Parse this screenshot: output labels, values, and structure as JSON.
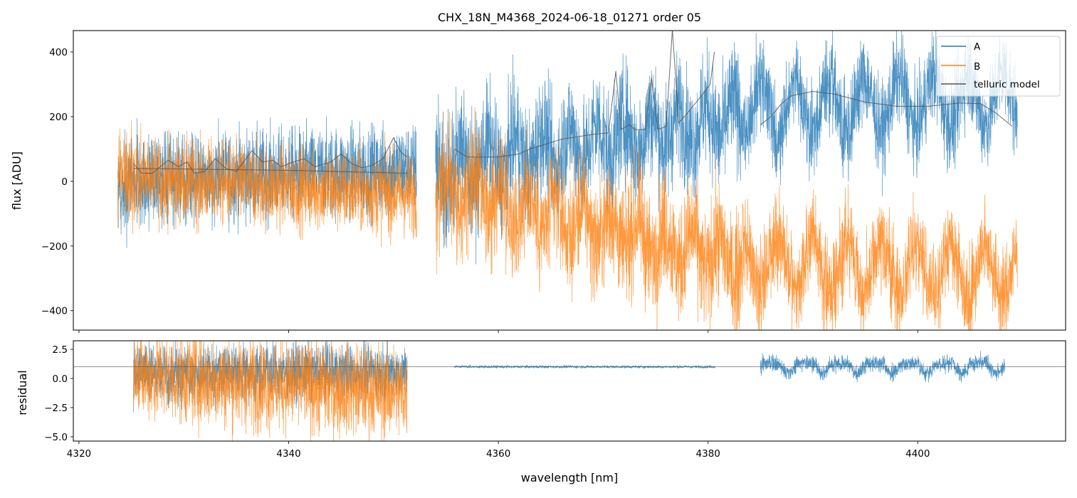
{
  "chart_data": [
    {
      "type": "line",
      "title": "CHX_18N_M4368_2024-06-18_01271  order 05",
      "xlabel": "",
      "ylabel": "flux [ADU]",
      "xlim": [
        4319.46,
        4414.1
      ],
      "ylim": [
        -460,
        466
      ],
      "xticks": [
        4320,
        4340,
        4360,
        4380,
        4400
      ],
      "yticks": [
        400,
        200,
        0,
        -200,
        -400
      ],
      "ytick_labels": [
        "400",
        "200",
        "0",
        "−200",
        "−400"
      ],
      "legend": {
        "placement": "top-right",
        "entries": [
          "A",
          "B",
          "telluric model"
        ]
      },
      "series": [
        {
          "name": "A",
          "color": "#1f77b4",
          "segments": [
            {
              "x": [
                4323.7,
                4352.2
              ],
              "mean": [
                0,
                40
              ],
              "noise": 70,
              "osc_amp": 0,
              "period": 3.3
            },
            {
              "x": [
                4354.0,
                4383.3
              ],
              "mean": [
                40,
                200
              ],
              "noise": 90,
              "osc_amp": 110,
              "period": 2.6
            },
            {
              "x": [
                4383.3,
                4409.5
              ],
              "mean": [
                220,
                260
              ],
              "noise": 70,
              "osc_amp": 160,
              "period": 3.3
            }
          ]
        },
        {
          "name": "B",
          "color": "#ff7f0e",
          "segments": [
            {
              "x": [
                4323.7,
                4352.2
              ],
              "mean": [
                10,
                -40
              ],
              "noise": 65,
              "osc_amp": 0,
              "period": 3.3
            },
            {
              "x": [
                4354.0,
                4383.3
              ],
              "mean": [
                -20,
                -250
              ],
              "noise": 90,
              "osc_amp": 110,
              "period": 2.6
            },
            {
              "x": [
                4383.3,
                4409.5
              ],
              "mean": [
                -250,
                -280
              ],
              "noise": 70,
              "osc_amp": 160,
              "period": 3.3
            }
          ]
        },
        {
          "name": "telluric model",
          "color": "#555555",
          "segments": [
            [
              [
                4325.2,
                40
              ],
              [
                4330,
                38
              ],
              [
                4335,
                36
              ],
              [
                4340,
                34
              ],
              [
                4345,
                30
              ],
              [
                4351.3,
                25
              ]
            ],
            [
              [
                4325.2,
                55
              ],
              [
                4326,
                25
              ],
              [
                4327,
                25
              ],
              [
                4328.5,
                65
              ],
              [
                4329.5,
                45
              ],
              [
                4330.3,
                60
              ],
              [
                4331,
                25
              ],
              [
                4332,
                30
              ],
              [
                4333,
                70
              ],
              [
                4334,
                40
              ],
              [
                4335,
                30
              ],
              [
                4336.5,
                95
              ],
              [
                4337.5,
                60
              ],
              [
                4338.5,
                65
              ],
              [
                4339.3,
                45
              ],
              [
                4340,
                55
              ],
              [
                4341.5,
                70
              ],
              [
                4342.5,
                45
              ],
              [
                4344,
                60
              ],
              [
                4345,
                85
              ],
              [
                4346,
                55
              ],
              [
                4347,
                42
              ],
              [
                4348,
                50
              ],
              [
                4349,
                70
              ],
              [
                4350,
                135
              ],
              [
                4350.7,
                90
              ],
              [
                4351.3,
                75
              ]
            ],
            [
              [
                4355.8,
                100
              ],
              [
                4357,
                75
              ],
              [
                4360,
                75
              ],
              [
                4362,
                85
              ],
              [
                4363,
                100
              ],
              [
                4364,
                110
              ],
              [
                4366,
                130
              ],
              [
                4369,
                145
              ],
              [
                4370.5,
                150
              ],
              [
                4371.2,
                340
              ],
              [
                4371.7,
                160
              ],
              [
                4372.5,
                175
              ],
              [
                4373,
                160
              ],
              [
                4374,
                160
              ],
              [
                4374.6,
                320
              ],
              [
                4375.2,
                160
              ],
              [
                4376,
                170
              ],
              [
                4376.6,
                470
              ],
              [
                4377.2,
                180
              ],
              [
                4378,
                210
              ],
              [
                4379.5,
                270
              ],
              [
                4380.2,
                300
              ],
              [
                4380.6,
                400
              ]
            ],
            [
              [
                4385,
                175
              ],
              [
                4386,
                200
              ],
              [
                4387,
                240
              ],
              [
                4388,
                265
              ],
              [
                4390,
                278
              ],
              [
                4392,
                270
              ],
              [
                4395,
                245
              ],
              [
                4398,
                232
              ],
              [
                4401,
                232
              ],
              [
                4404,
                242
              ],
              [
                4406,
                240
              ],
              [
                4407.5,
                210
              ],
              [
                4409,
                170
              ]
            ]
          ]
        }
      ]
    },
    {
      "type": "line",
      "title": "",
      "xlabel": "wavelength [nm]",
      "ylabel": "residual",
      "xlim": [
        4319.46,
        4414.1
      ],
      "ylim": [
        -5.37,
        3.23
      ],
      "xticks": [
        4320,
        4340,
        4360,
        4380,
        4400
      ],
      "xtick_labels": [
        "4320",
        "4340",
        "4360",
        "4380",
        "4400"
      ],
      "yticks": [
        2.5,
        0.0,
        -2.5,
        -5.0
      ],
      "ytick_labels": [
        "2.5",
        "0.0",
        "−2.5",
        "−5.0"
      ],
      "reference_line": 1.0,
      "series": [
        {
          "name": "A",
          "color": "#1f77b4",
          "segments": [
            {
              "x": [
                4325.2,
                4351.3
              ],
              "mean": [
                0.4,
                0.6
              ],
              "noise": 1.2,
              "osc_amp": 0,
              "period": 3.3
            },
            {
              "x": [
                4355.8,
                4380.7
              ],
              "mean": [
                1.0,
                1.0
              ],
              "noise": 0.06,
              "osc_amp": 0,
              "period": 3.3
            },
            {
              "x": [
                4385.0,
                4408.3
              ],
              "mean": [
                1.0,
                1.0
              ],
              "noise": 0.35,
              "osc_amp": 0.7,
              "period": 3.3
            }
          ]
        },
        {
          "name": "B",
          "color": "#ff7f0e",
          "segments": [
            {
              "x": [
                4325.2,
                4351.3
              ],
              "mean": [
                0.3,
                -1.2
              ],
              "noise": 2.0,
              "osc_amp": 0,
              "period": 3.3
            }
          ]
        }
      ]
    }
  ]
}
